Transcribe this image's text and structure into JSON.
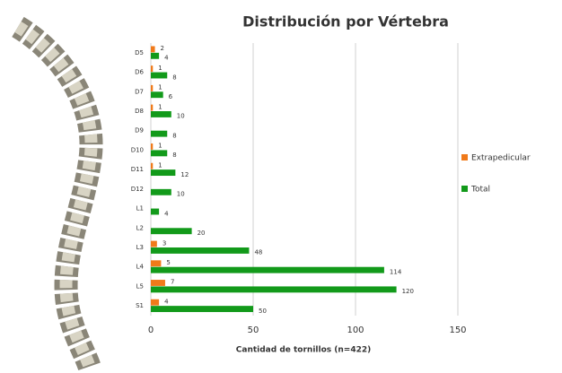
{
  "chart_data": {
    "type": "bar",
    "orientation": "horizontal",
    "title": "Distribución por Vértebra",
    "x_label": "Cantidad de tornillos (n=422)",
    "categories": [
      "D5",
      "D6",
      "D7",
      "D8",
      "D9",
      "D10",
      "D11",
      "D12",
      "L1",
      "L2",
      "L3",
      "L4",
      "L5",
      "S1"
    ],
    "series": [
      {
        "name": "Extrapedicular",
        "color": "#f07a1a",
        "values": [
          2,
          1,
          1,
          1,
          null,
          1,
          1,
          null,
          null,
          null,
          3,
          5,
          7,
          4
        ]
      },
      {
        "name": "Total",
        "color": "#129a1a",
        "values": [
          4,
          8,
          6,
          10,
          8,
          8,
          12,
          10,
          4,
          20,
          48,
          114,
          120,
          50
        ]
      }
    ],
    "xlim": [
      0,
      150
    ],
    "xticks": [
      0,
      50,
      100,
      150
    ],
    "grid": true,
    "legend": "right"
  }
}
